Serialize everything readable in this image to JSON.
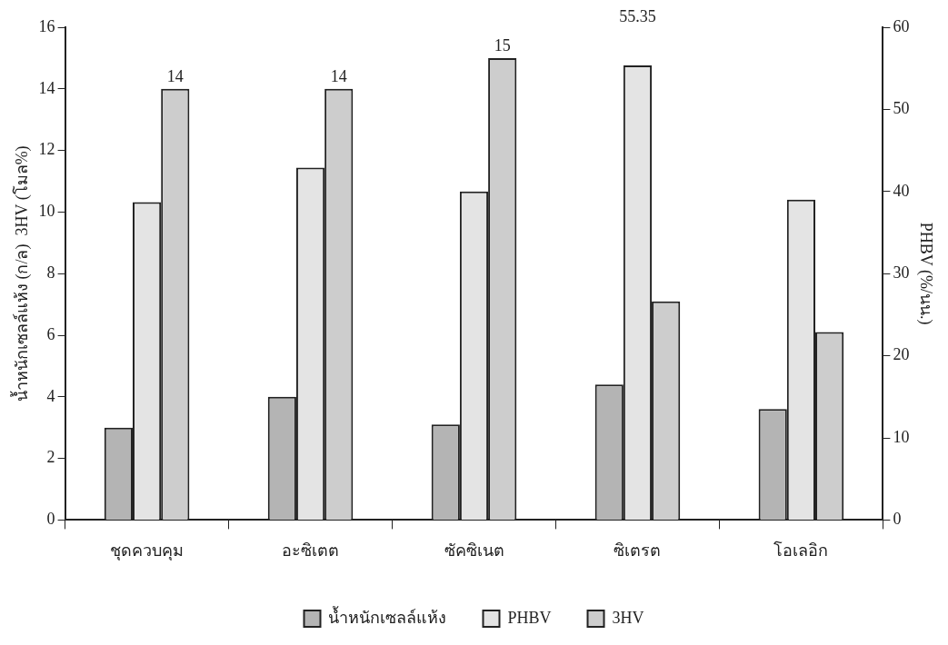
{
  "chart_data": {
    "type": "bar",
    "categories": [
      "ชุดควบคุม",
      "อะซิเตต",
      "ซัคซิเนต",
      "ซิเตรต",
      "โอเลอิก"
    ],
    "ylabel": "น้ำหนักเซลล์แห้ง (ก/ล)  3HV (โมล%)",
    "y2label": "PHBV (%/นน.)",
    "series": [
      {
        "name": "น้ำหนักเซลล์แห้ง",
        "color": "#b4b4b4",
        "values": [
          3.0,
          4.0,
          3.1,
          4.4,
          3.6
        ]
      },
      {
        "name": "PHBV",
        "color": "#e4e4e4",
        "axis": "y2",
        "values": [
          38.7,
          42.9,
          40,
          55.35,
          39
        ],
        "value_labels": [
          null,
          null,
          null,
          "55.35",
          null
        ]
      },
      {
        "name": "3HV",
        "color": "#cdcdcd",
        "values": [
          14,
          14,
          15,
          7.1,
          6.1
        ],
        "value_labels": [
          "14",
          "14",
          "15",
          null,
          null
        ]
      }
    ],
    "ylim": [
      0,
      16
    ],
    "yticks": [
      0,
      2,
      4,
      6,
      8,
      10,
      12,
      14,
      16
    ],
    "y2lim": [
      0,
      60
    ],
    "y2ticks": [
      0,
      10,
      20,
      30,
      40,
      50,
      60
    ],
    "grid": false,
    "legend": "bottom"
  }
}
